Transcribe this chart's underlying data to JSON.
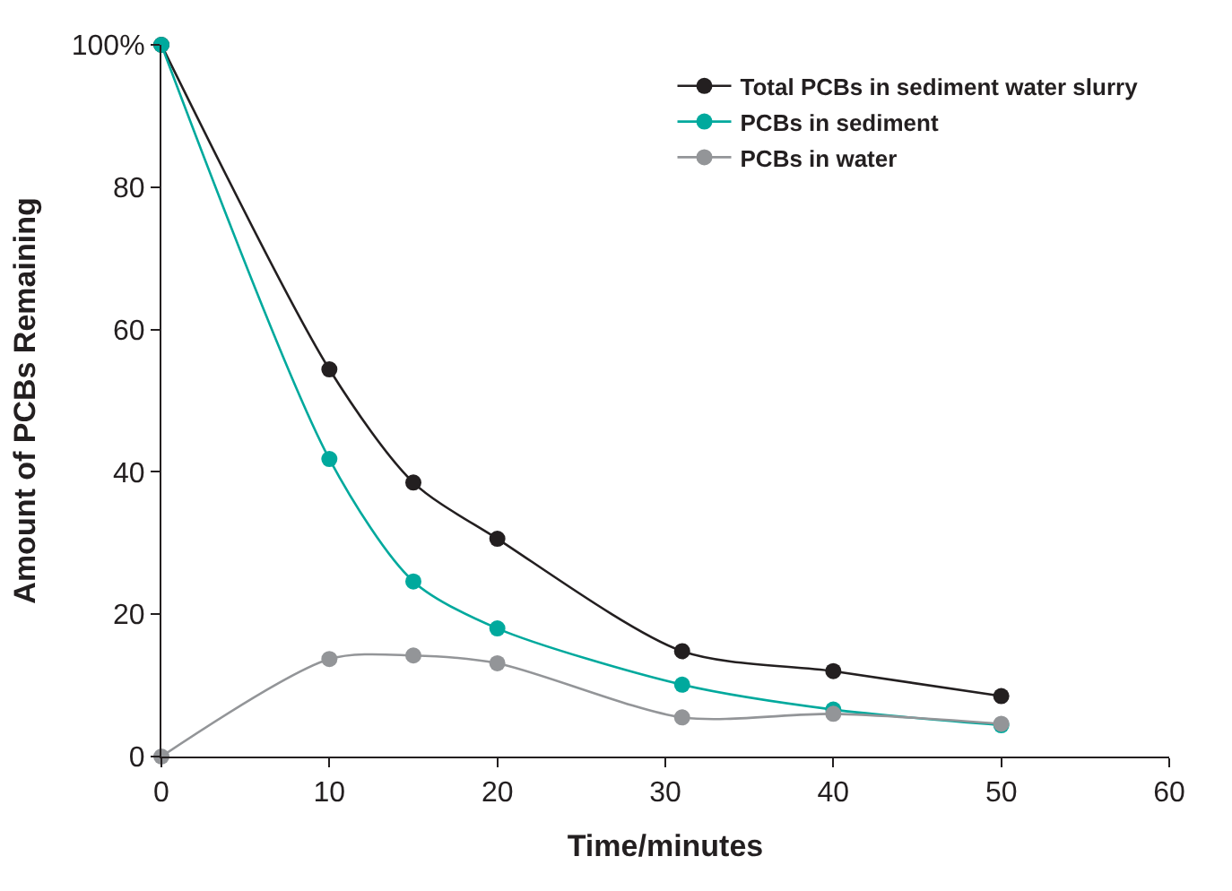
{
  "chart_data": {
    "type": "line",
    "xlabel": "Time/minutes",
    "ylabel": "Amount of PCBs Remaining",
    "x": [
      0,
      10,
      15,
      20,
      31,
      40,
      50
    ],
    "series": [
      {
        "name": "Total PCBs in sediment water slurry",
        "color": "#231f20",
        "values": [
          100,
          54.4,
          38.5,
          30.6,
          14.8,
          12,
          8.5
        ]
      },
      {
        "name": "PCBs in sediment",
        "color": "#00a99d",
        "values": [
          100,
          41.8,
          24.6,
          18,
          10.1,
          6.6,
          4.4
        ]
      },
      {
        "name": "PCBs in water",
        "color": "#939598",
        "values": [
          0,
          13.7,
          14.2,
          13.1,
          5.5,
          6,
          4.6
        ]
      }
    ],
    "xlim": [
      0,
      60
    ],
    "xticks": [
      0,
      10,
      20,
      30,
      40,
      50,
      60
    ],
    "ylim": [
      0,
      100
    ],
    "yticks": [
      0,
      20,
      40,
      60,
      80,
      {
        "value": 100,
        "label": "100%"
      }
    ],
    "grid": false,
    "legend": "top right",
    "marker": "circle",
    "line_style": "solid"
  }
}
